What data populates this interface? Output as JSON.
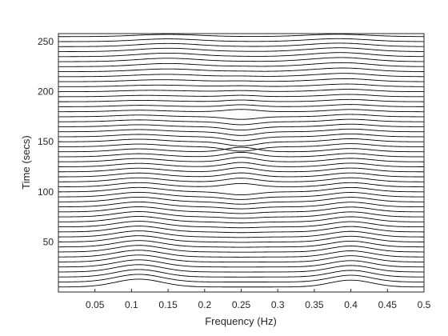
{
  "chart_data": {
    "type": "line",
    "style": "waterfall",
    "xlabel": "Frequency (Hz)",
    "ylabel": "Time (secs)",
    "xlim": [
      0,
      0.5
    ],
    "ylim": [
      0,
      258
    ],
    "xticks": [
      "0.05",
      "0.1",
      "0.15",
      "0.2",
      "0.25",
      "0.3",
      "0.35",
      "0.4",
      "0.45",
      "0.5"
    ],
    "xtick_values": [
      0.05,
      0.1,
      0.15,
      0.2,
      0.25,
      0.3,
      0.35,
      0.4,
      0.45,
      0.5
    ],
    "yticks": [
      "50",
      "100",
      "150",
      "200",
      "250"
    ],
    "ytick_values": [
      50,
      100,
      150,
      200,
      250
    ],
    "grid": false,
    "line_color": "#000000",
    "trace_spacing_secs": 5,
    "trace_count": 51,
    "trace_start_secs": 5,
    "features": {
      "low_freq_peak_hz": 0.11,
      "high_freq_peak_hz": 0.4,
      "center_feature_hz": 0.25
    }
  }
}
